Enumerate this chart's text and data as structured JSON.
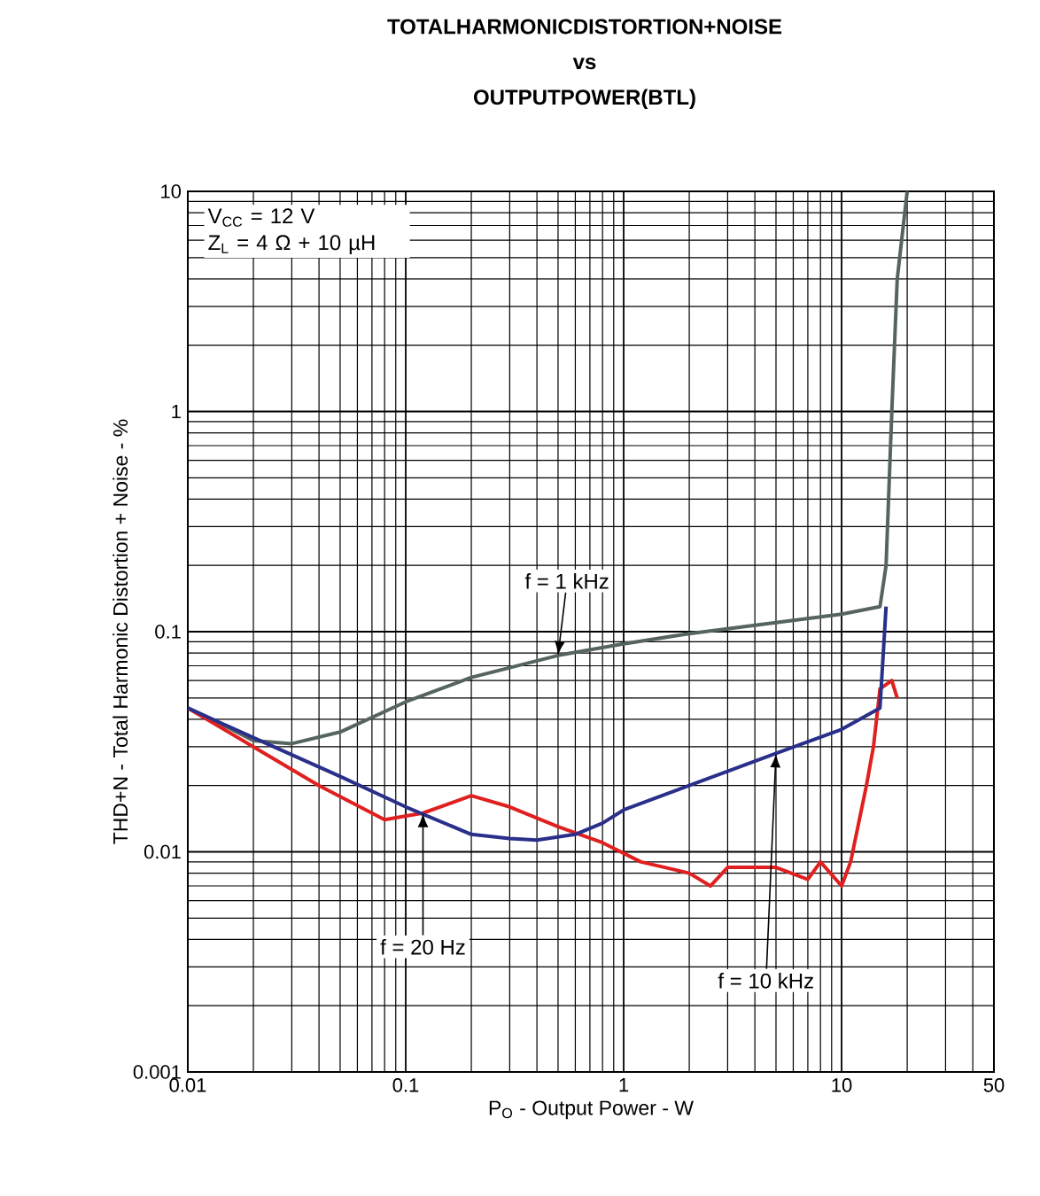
{
  "chart_data": {
    "type": "line",
    "title": "**TOTALHARMONICDISTORTION+NOISE**",
    "subtitle": "**vs**\n**OUTPUTPOWER(BTL)**",
    "xlabel": "P$_{O}$ - Output Power - W",
    "ylabel": "THD+N - Total Harmonic Distortion + Noise - %",
    "log": "xy",
    "grid": true,
    "legend": false,
    "xlim": [
      0.01,
      50
    ],
    "ylim": [
      0.001,
      10
    ],
    "xticks": [
      0.01,
      0.1,
      1,
      10,
      50
    ],
    "yticks": [
      0.001,
      0.01,
      0.1,
      1,
      10
    ],
    "annotations": [
      "V$_{CC}$ = 12 V",
      "Z$_{L}$ = 4 Ω + 10 µH"
    ],
    "series": [
      {
        "name": "f = 1 kHz",
        "color": "#56645f",
        "x": [
          0.01,
          0.015,
          0.02,
          0.03,
          0.05,
          0.1,
          0.2,
          0.5,
          1,
          2,
          5,
          10,
          15,
          16,
          17,
          18,
          20
        ],
        "values": [
          0.045,
          0.037,
          0.032,
          0.031,
          0.035,
          0.048,
          0.062,
          0.078,
          0.088,
          0.098,
          0.11,
          0.12,
          0.13,
          0.2,
          1,
          4,
          10
        ]
      },
      {
        "name": "f = 20 Hz",
        "color": "#e02020",
        "x": [
          0.01,
          0.02,
          0.04,
          0.08,
          0.12,
          0.2,
          0.3,
          0.5,
          0.8,
          1.2,
          2,
          2.5,
          3,
          5,
          7,
          8,
          10,
          11,
          13,
          14,
          15,
          17,
          18
        ],
        "values": [
          0.045,
          0.03,
          0.02,
          0.014,
          0.015,
          0.018,
          0.016,
          0.013,
          0.011,
          0.009,
          0.008,
          0.007,
          0.0085,
          0.0085,
          0.0075,
          0.009,
          0.007,
          0.009,
          0.02,
          0.03,
          0.055,
          0.06,
          0.05
        ]
      },
      {
        "name": "f = 10 kHz",
        "color": "#2a2f8a",
        "x": [
          0.01,
          0.02,
          0.05,
          0.1,
          0.2,
          0.3,
          0.4,
          0.6,
          0.8,
          1,
          2,
          5,
          10,
          15,
          16
        ],
        "values": [
          0.045,
          0.033,
          0.022,
          0.016,
          0.012,
          0.0115,
          0.0113,
          0.012,
          0.0135,
          0.0155,
          0.02,
          0.028,
          0.036,
          0.045,
          0.13
        ]
      }
    ]
  }
}
